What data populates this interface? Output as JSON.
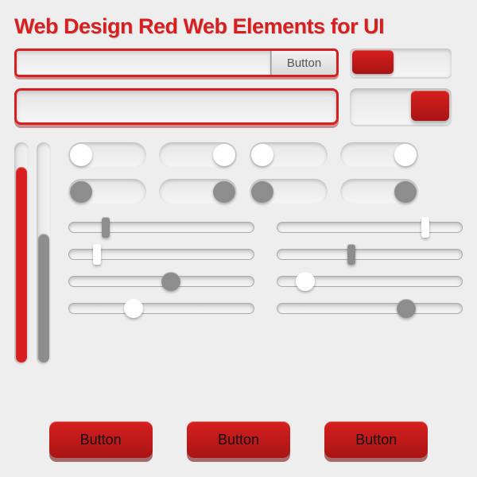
{
  "colors": {
    "red": "#d71f1f",
    "red_dark": "#a81414",
    "gray": "#8d8d8d",
    "white": "#ffffff",
    "bg": "#eeeeee"
  },
  "title": "Web Design Red Web Elements for UI",
  "search1": {
    "button_label": "Button"
  },
  "toggle_wide_1": {
    "side": "left"
  },
  "toggle_wide_2": {
    "side": "right"
  },
  "vbars": [
    {
      "fill_pct": 88,
      "color_key": "red"
    },
    {
      "fill_pct": 58,
      "color_key": "gray"
    }
  ],
  "pills": [
    {
      "side": "left",
      "color_key": "white"
    },
    {
      "side": "right",
      "color_key": "white"
    },
    {
      "side": "left",
      "color_key": "white"
    },
    {
      "side": "right",
      "color_key": "white"
    },
    {
      "side": "left",
      "color_key": "gray"
    },
    {
      "side": "right",
      "color_key": "gray"
    },
    {
      "side": "left",
      "color_key": "gray"
    },
    {
      "side": "right",
      "color_key": "gray"
    }
  ],
  "sliders_left": [
    {
      "pos_pct": 20,
      "shape": "bar",
      "color_key": "gray"
    },
    {
      "pos_pct": 15,
      "shape": "bar",
      "color_key": "white"
    },
    {
      "pos_pct": 55,
      "shape": "round",
      "color_key": "gray"
    },
    {
      "pos_pct": 35,
      "shape": "round",
      "color_key": "white"
    }
  ],
  "sliders_right": [
    {
      "pos_pct": 80,
      "shape": "bar",
      "color_key": "white"
    },
    {
      "pos_pct": 40,
      "shape": "bar",
      "color_key": "gray"
    },
    {
      "pos_pct": 15,
      "shape": "round",
      "color_key": "white"
    },
    {
      "pos_pct": 70,
      "shape": "round",
      "color_key": "gray"
    }
  ],
  "buttons": [
    {
      "label": "Button"
    },
    {
      "label": "Button"
    },
    {
      "label": "Button"
    }
  ]
}
